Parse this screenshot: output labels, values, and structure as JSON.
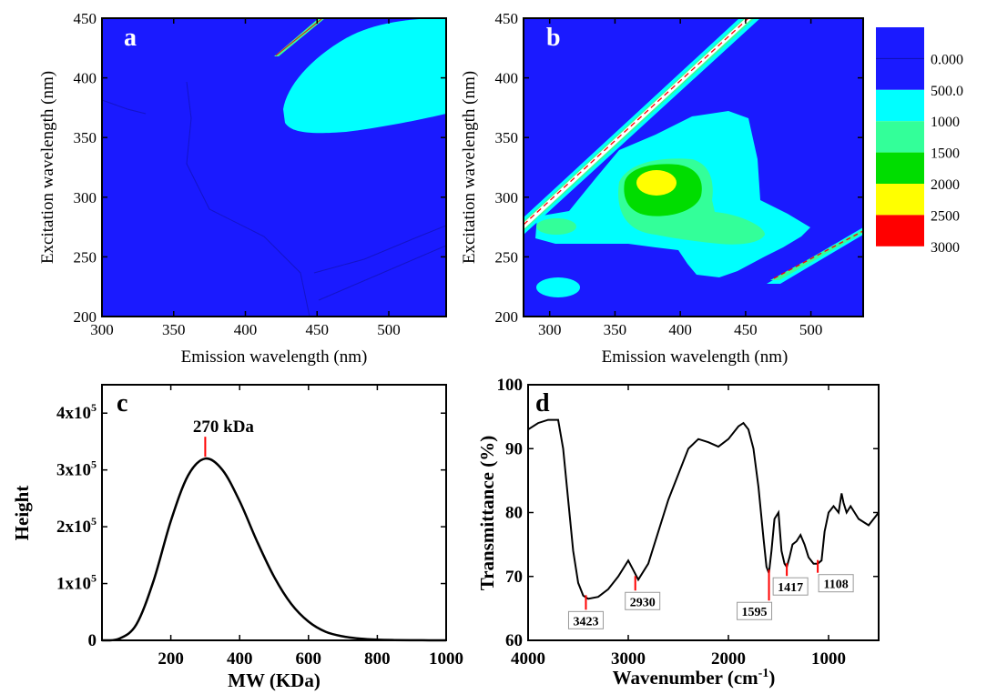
{
  "colors": {
    "background": "#1a1aff",
    "cyan": "#00ffff",
    "lightgreen": "#33ff99",
    "green": "#00dd00",
    "yellow": "#ffff00",
    "red": "#ff0000",
    "white": "#ffffff",
    "peak_marker": "#ff0000"
  },
  "legend": {
    "labels": [
      "0.000",
      "500.0",
      "1000",
      "1500",
      "2000",
      "2500",
      "3000"
    ],
    "colors": [
      "#1a1aff",
      "#1a1aff",
      "#00ffff",
      "#33ff99",
      "#00dd00",
      "#ffff00",
      "#ff0000"
    ]
  },
  "chart_data": [
    {
      "type": "heatmap",
      "panel_label": "a",
      "xlabel": "Emission wavelength (nm)",
      "ylabel": "Excitation wavelength (nm)",
      "xlim": [
        300,
        540
      ],
      "ylim": [
        200,
        450
      ],
      "xticks": [
        "300",
        "350",
        "400",
        "450",
        "500"
      ],
      "yticks": [
        "200",
        "250",
        "300",
        "350",
        "400",
        "450"
      ],
      "regions": [
        {
          "level": "500-1000",
          "description_points": [
            [
              425,
              380
            ],
            [
              440,
              410
            ],
            [
              470,
              440
            ],
            [
              500,
              450
            ],
            [
              540,
              450
            ],
            [
              540,
              375
            ],
            [
              510,
              365
            ],
            [
              470,
              357
            ],
            [
              440,
              355
            ],
            [
              425,
              362
            ]
          ]
        },
        {
          "level": "scatter-band",
          "points": [
            [
              420,
              418
            ],
            [
              424,
              418
            ],
            [
              447,
              450
            ],
            [
              441,
              450
            ]
          ]
        }
      ]
    },
    {
      "type": "heatmap",
      "panel_label": "b",
      "xlabel": "Emission wavelength (nm)",
      "ylabel": "Excitation wavelength (nm)",
      "xlim": [
        280,
        540
      ],
      "ylim": [
        200,
        450
      ],
      "xticks": [
        "300",
        "350",
        "400",
        "450",
        "500"
      ],
      "yticks": [
        "200",
        "250",
        "300",
        "350",
        "400",
        "450"
      ]
    },
    {
      "type": "line",
      "panel_label": "c",
      "xlabel": "MW (KDa)",
      "ylabel": "Height",
      "xlim": [
        0,
        1000
      ],
      "ylim": [
        0,
        450000
      ],
      "xticks": [
        "200",
        "400",
        "600",
        "800",
        "1000"
      ],
      "yticks": [
        {
          "base": "0",
          "exp": ""
        },
        {
          "base": "1x10",
          "exp": "5"
        },
        {
          "base": "2x10",
          "exp": "5"
        },
        {
          "base": "3x10",
          "exp": "5"
        },
        {
          "base": "4x10",
          "exp": "5"
        }
      ],
      "annotation": "270 kDa",
      "annotation_x": 300,
      "x": [
        0,
        50,
        100,
        150,
        200,
        250,
        300,
        350,
        400,
        450,
        500,
        550,
        600,
        650,
        700,
        750,
        800,
        850,
        900,
        950,
        1000
      ],
      "y": [
        0,
        3000,
        28000,
        105000,
        210000,
        290000,
        320000,
        300000,
        245000,
        175000,
        112000,
        64000,
        33000,
        15000,
        7000,
        3000,
        1200,
        500,
        200,
        80,
        0
      ]
    },
    {
      "type": "line",
      "panel_label": "d",
      "xlabel": "Wavenumber (cm",
      "xlabel_sup": "-1",
      "xlabel_end": ")",
      "ylabel": "Transmittance (%)",
      "xlim": [
        4000,
        500
      ],
      "ylim": [
        60,
        100
      ],
      "xticks": [
        "4000",
        "3000",
        "2000",
        "1000"
      ],
      "yticks": [
        "60",
        "70",
        "80",
        "90",
        "100"
      ],
      "peaks": [
        {
          "label": "3423",
          "x": 3423,
          "y": 66.5
        },
        {
          "label": "2930",
          "x": 2930,
          "y": 69.5
        },
        {
          "label": "1595",
          "x": 1595,
          "y": 70.5
        },
        {
          "label": "1417",
          "x": 1417,
          "y": 71.5
        },
        {
          "label": "1108",
          "x": 1108,
          "y": 72
        }
      ],
      "x": [
        4000,
        3900,
        3800,
        3700,
        3650,
        3600,
        3550,
        3500,
        3450,
        3400,
        3300,
        3200,
        3100,
        3000,
        2950,
        2900,
        2800,
        2700,
        2600,
        2500,
        2400,
        2300,
        2200,
        2100,
        2000,
        1900,
        1850,
        1800,
        1750,
        1700,
        1650,
        1620,
        1595,
        1570,
        1540,
        1500,
        1470,
        1440,
        1417,
        1390,
        1360,
        1320,
        1280,
        1240,
        1200,
        1150,
        1108,
        1070,
        1040,
        1000,
        950,
        900,
        870,
        850,
        820,
        780,
        740,
        700,
        650,
        600,
        550,
        500
      ],
      "y": [
        93,
        94,
        94.5,
        94.5,
        90,
        82,
        74,
        69,
        67,
        66.5,
        66.8,
        68,
        70,
        72.5,
        71,
        69.5,
        72,
        77,
        82,
        86,
        90,
        91.5,
        91,
        90.3,
        91.5,
        93.5,
        94,
        93,
        90,
        84,
        76,
        71.5,
        70.5,
        74,
        79,
        80,
        74,
        72,
        71.5,
        73,
        75,
        75.5,
        76.5,
        75,
        73,
        72,
        72,
        72.5,
        77,
        80,
        81,
        80,
        83,
        81.5,
        80,
        81,
        80,
        79,
        78.5,
        78,
        79,
        80
      ]
    }
  ]
}
